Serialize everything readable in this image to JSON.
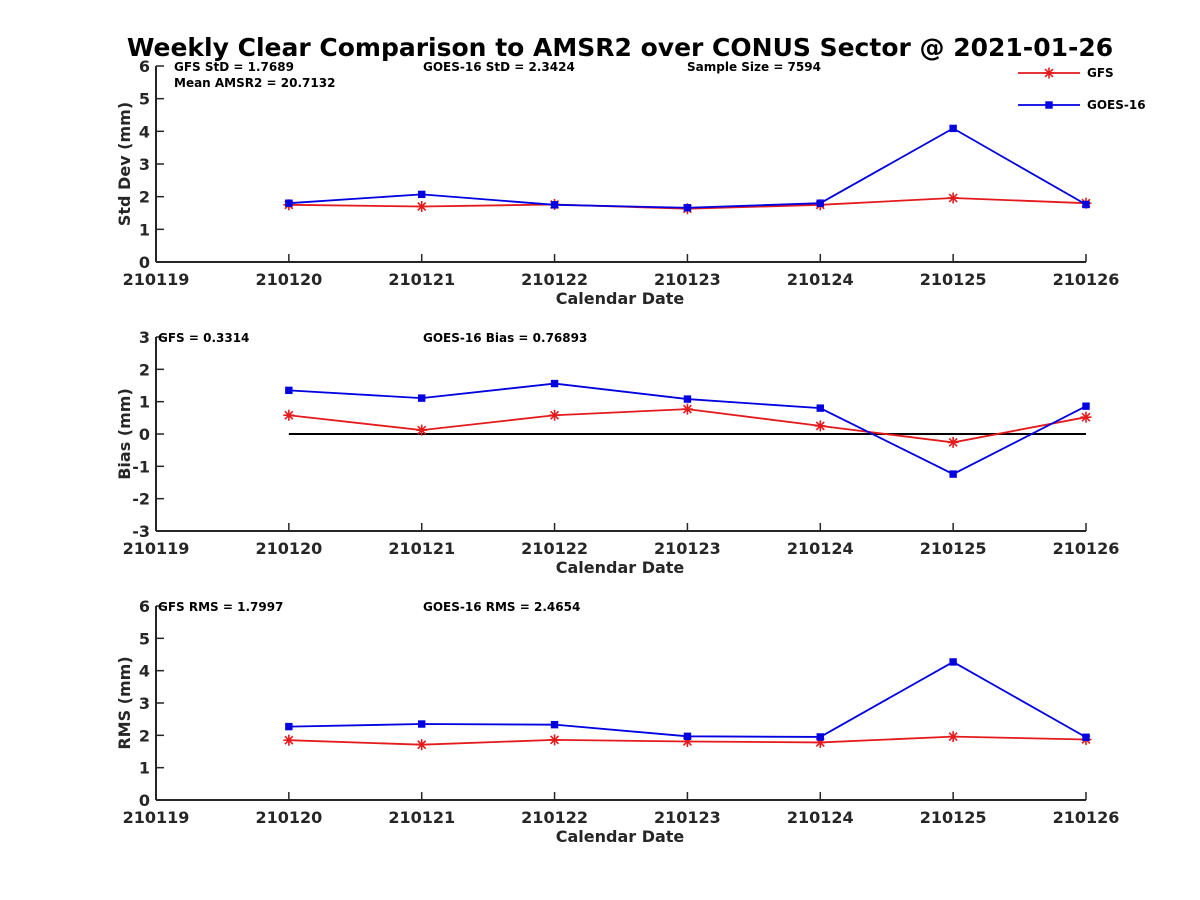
{
  "title": "Weekly Clear Comparison to AMSR2 over CONUS Sector @ 2021-01-26",
  "colors": {
    "GFS": "#e41a1c",
    "GOES-16": "#0000e0",
    "zero_line": "#000000",
    "axis": "#262626"
  },
  "legend": {
    "placement": "top-right",
    "entries": [
      "GFS",
      "GOES-16"
    ]
  },
  "chart_data": [
    {
      "type": "line",
      "xlabel": "Calendar Date",
      "ylabel": "Std Dev (mm)",
      "x_ticks": [
        "210119",
        "210120",
        "210121",
        "210122",
        "210123",
        "210124",
        "210125",
        "210126"
      ],
      "ylim": [
        0,
        6
      ],
      "y_ticks": [
        "0",
        "1",
        "2",
        "3",
        "4",
        "5",
        "6"
      ],
      "categories": [
        "210120",
        "210121",
        "210122",
        "210123",
        "210124",
        "210125",
        "210126"
      ],
      "series": [
        {
          "name": "GFS",
          "values": [
            1.75,
            1.7,
            1.76,
            1.63,
            1.75,
            1.96,
            1.8
          ]
        },
        {
          "name": "GOES-16",
          "values": [
            1.8,
            2.07,
            1.75,
            1.66,
            1.8,
            4.09,
            1.76
          ]
        }
      ],
      "annotations": [
        "GFS StD = 1.7689",
        "Mean AMSR2 = 20.7132",
        "GOES-16 StD = 2.3424",
        "Sample Size = 7594"
      ],
      "zero_line": false
    },
    {
      "type": "line",
      "xlabel": "Calendar Date",
      "ylabel": "Bias (mm)",
      "x_ticks": [
        "210119",
        "210120",
        "210121",
        "210122",
        "210123",
        "210124",
        "210125",
        "210126"
      ],
      "ylim": [
        -3,
        3
      ],
      "y_ticks": [
        "-3",
        "-2",
        "-1",
        "0",
        "1",
        "2",
        "3"
      ],
      "categories": [
        "210120",
        "210121",
        "210122",
        "210123",
        "210124",
        "210125",
        "210126"
      ],
      "series": [
        {
          "name": "GFS",
          "values": [
            0.58,
            0.12,
            0.58,
            0.77,
            0.25,
            -0.26,
            0.52
          ]
        },
        {
          "name": "GOES-16",
          "values": [
            1.35,
            1.11,
            1.56,
            1.08,
            0.8,
            -1.24,
            0.86
          ]
        }
      ],
      "annotations": [
        "GFS = 0.3314",
        "GOES-16 Bias  = 0.76893"
      ],
      "zero_line": true
    },
    {
      "type": "line",
      "xlabel": "Calendar Date",
      "ylabel": "RMS (mm)",
      "x_ticks": [
        "210119",
        "210120",
        "210121",
        "210122",
        "210123",
        "210124",
        "210125",
        "210126"
      ],
      "ylim": [
        0,
        6
      ],
      "y_ticks": [
        "0",
        "1",
        "2",
        "3",
        "4",
        "5",
        "6"
      ],
      "categories": [
        "210120",
        "210121",
        "210122",
        "210123",
        "210124",
        "210125",
        "210126"
      ],
      "series": [
        {
          "name": "GFS",
          "values": [
            1.85,
            1.71,
            1.86,
            1.81,
            1.78,
            1.96,
            1.87
          ]
        },
        {
          "name": "GOES-16",
          "values": [
            2.27,
            2.35,
            2.33,
            1.97,
            1.95,
            4.27,
            1.94
          ]
        }
      ],
      "annotations": [
        "GFS RMS = 1.7997",
        "GOES-16 RMS = 2.4654"
      ],
      "zero_line": false
    }
  ]
}
